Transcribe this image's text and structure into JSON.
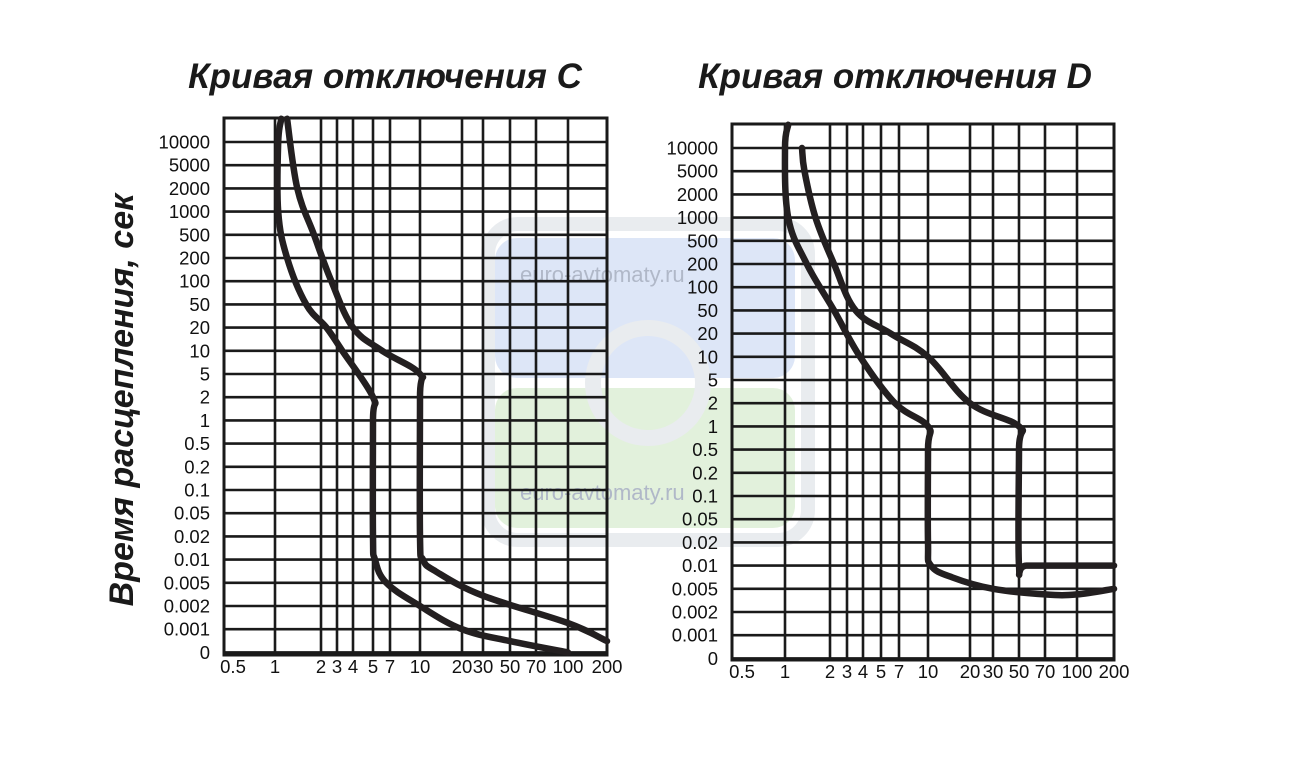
{
  "ylabel": "Время расцепления, сек",
  "watermark": {
    "text": "euro-avtomaty.ru",
    "colors": {
      "top": "#dde6f7",
      "bottom": "#e2f1dc",
      "ring": "#e9ecef"
    }
  },
  "chart_data": [
    {
      "type": "line",
      "title": "Кривая отключения C",
      "xlabel": "",
      "ylabel": "Время расцепления, сек",
      "x_ticks": [
        "0.5",
        "1",
        "2",
        "3",
        "4",
        "5",
        "7",
        "10",
        "20",
        "30",
        "50",
        "70",
        "100",
        "200"
      ],
      "y_ticks": [
        "10000",
        "5000",
        "2000",
        "1000",
        "500",
        "200",
        "100",
        "50",
        "20",
        "10",
        "5",
        "2",
        "1",
        "0.5",
        "0.2",
        "0.1",
        "0.05",
        "0.02",
        "0.01",
        "0.005",
        "0.002",
        "0.001",
        "0"
      ],
      "grid": true,
      "series": [
        {
          "x": [
            1.1,
            1.05,
            1.05,
            1.2,
            1.6,
            2.3,
            3.3,
            5.0,
            5.0,
            5.0,
            5.2,
            6.5,
            10,
            20,
            50,
            100
          ],
          "y": [
            20000,
            10000,
            1000,
            200,
            50,
            20,
            10,
            2,
            1,
            0.02,
            0.01,
            0.005,
            0.002,
            0.001,
            0.0007,
            0.0005
          ]
        },
        {
          "x": [
            1.2,
            1.4,
            1.8,
            2.6,
            4.0,
            6.0,
            10,
            10,
            10,
            10.5,
            13,
            30,
            100,
            200
          ],
          "y": [
            20000,
            2000,
            500,
            100,
            20,
            10,
            5,
            2,
            0.02,
            0.01,
            0.007,
            0.003,
            0.0012,
            0.0007
          ]
        }
      ]
    },
    {
      "type": "line",
      "title": "Кривая отключения D",
      "xlabel": "",
      "ylabel": "",
      "x_ticks": [
        "0.5",
        "1",
        "2",
        "3",
        "4",
        "5",
        "7",
        "10",
        "20",
        "30",
        "50",
        "70",
        "100",
        "200"
      ],
      "y_ticks": [
        "10000",
        "5000",
        "2000",
        "1000",
        "500",
        "200",
        "100",
        "50",
        "20",
        "10",
        "5",
        "2",
        "1",
        "0.5",
        "0.2",
        "0.1",
        "0.05",
        "0.02",
        "0.01",
        "0.005",
        "0.002",
        "0.001",
        "0"
      ],
      "grid": true,
      "series": [
        {
          "x": [
            1.05,
            1.0,
            1.05,
            1.4,
            2.2,
            3.8,
            6.5,
            10,
            10,
            10,
            10.5,
            15,
            30,
            70,
            100,
            200
          ],
          "y": [
            20000,
            10000,
            1000,
            200,
            50,
            10,
            2,
            1,
            0.5,
            0.02,
            0.01,
            0.007,
            0.005,
            0.004,
            0.004,
            0.005
          ]
        },
        {
          "x": [
            1.3,
            1.35,
            1.6,
            2.2,
            3.5,
            6.0,
            10,
            20,
            50,
            50,
            50,
            55,
            100,
            200
          ],
          "y": [
            10000,
            5000,
            1000,
            200,
            50,
            20,
            10,
            2,
            1,
            0.5,
            0.01,
            0.01,
            0.01,
            0.01
          ]
        }
      ]
    }
  ]
}
